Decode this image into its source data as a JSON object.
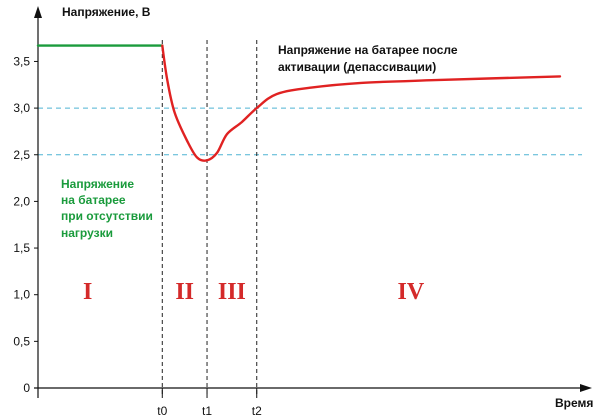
{
  "chart_data": {
    "type": "line",
    "ylabel": "Напряжение, В",
    "xlabel": "Время",
    "ylim": [
      0,
      3.75
    ],
    "y_ticks": [
      {
        "value": 0,
        "label": "0"
      },
      {
        "value": 0.5,
        "label": "0,5"
      },
      {
        "value": 1.0,
        "label": "1,0"
      },
      {
        "value": 1.5,
        "label": "1,5"
      },
      {
        "value": 2.0,
        "label": "2,0"
      },
      {
        "value": 2.5,
        "label": "2,5"
      },
      {
        "value": 3.0,
        "label": "3,0"
      },
      {
        "value": 3.5,
        "label": "3,5"
      }
    ],
    "x_ticks": [
      {
        "value": 2.5,
        "label": "t0"
      },
      {
        "value": 3.4,
        "label": "t1"
      },
      {
        "value": 4.4,
        "label": "t2"
      }
    ],
    "reference_lines_y": [
      2.5,
      3.0
    ],
    "series": [
      {
        "name": "Напряжение на батарее при отсутствии нагрузки",
        "color": "#1a9b3c",
        "x": [
          0,
          2.5
        ],
        "y": [
          3.67,
          3.67
        ]
      },
      {
        "name": "Напряжение на батарее после активации (депассивации)",
        "color": "#e02222",
        "x": [
          2.5,
          2.6,
          2.75,
          3.0,
          3.2,
          3.4,
          3.6,
          3.8,
          4.1,
          4.4,
          4.8,
          5.5,
          6.5,
          8.0,
          10.5
        ],
        "y": [
          3.67,
          3.3,
          2.95,
          2.65,
          2.47,
          2.44,
          2.52,
          2.72,
          2.85,
          3.0,
          3.15,
          3.22,
          3.27,
          3.3,
          3.34
        ]
      }
    ],
    "annotations": {
      "activated_line1": "Напряжение на батарее после",
      "activated_line2": "активации (депассивации)",
      "no_load_line1": "Напряжение",
      "no_load_line2": "на батарее",
      "no_load_line3": "при отсутствии",
      "no_load_line4": "нагрузки"
    },
    "regions": [
      {
        "label": "I",
        "x": 1.0
      },
      {
        "label": "II",
        "x": 2.95
      },
      {
        "label": "III",
        "x": 3.9
      },
      {
        "label": "IV",
        "x": 7.5
      }
    ],
    "grid": false
  }
}
